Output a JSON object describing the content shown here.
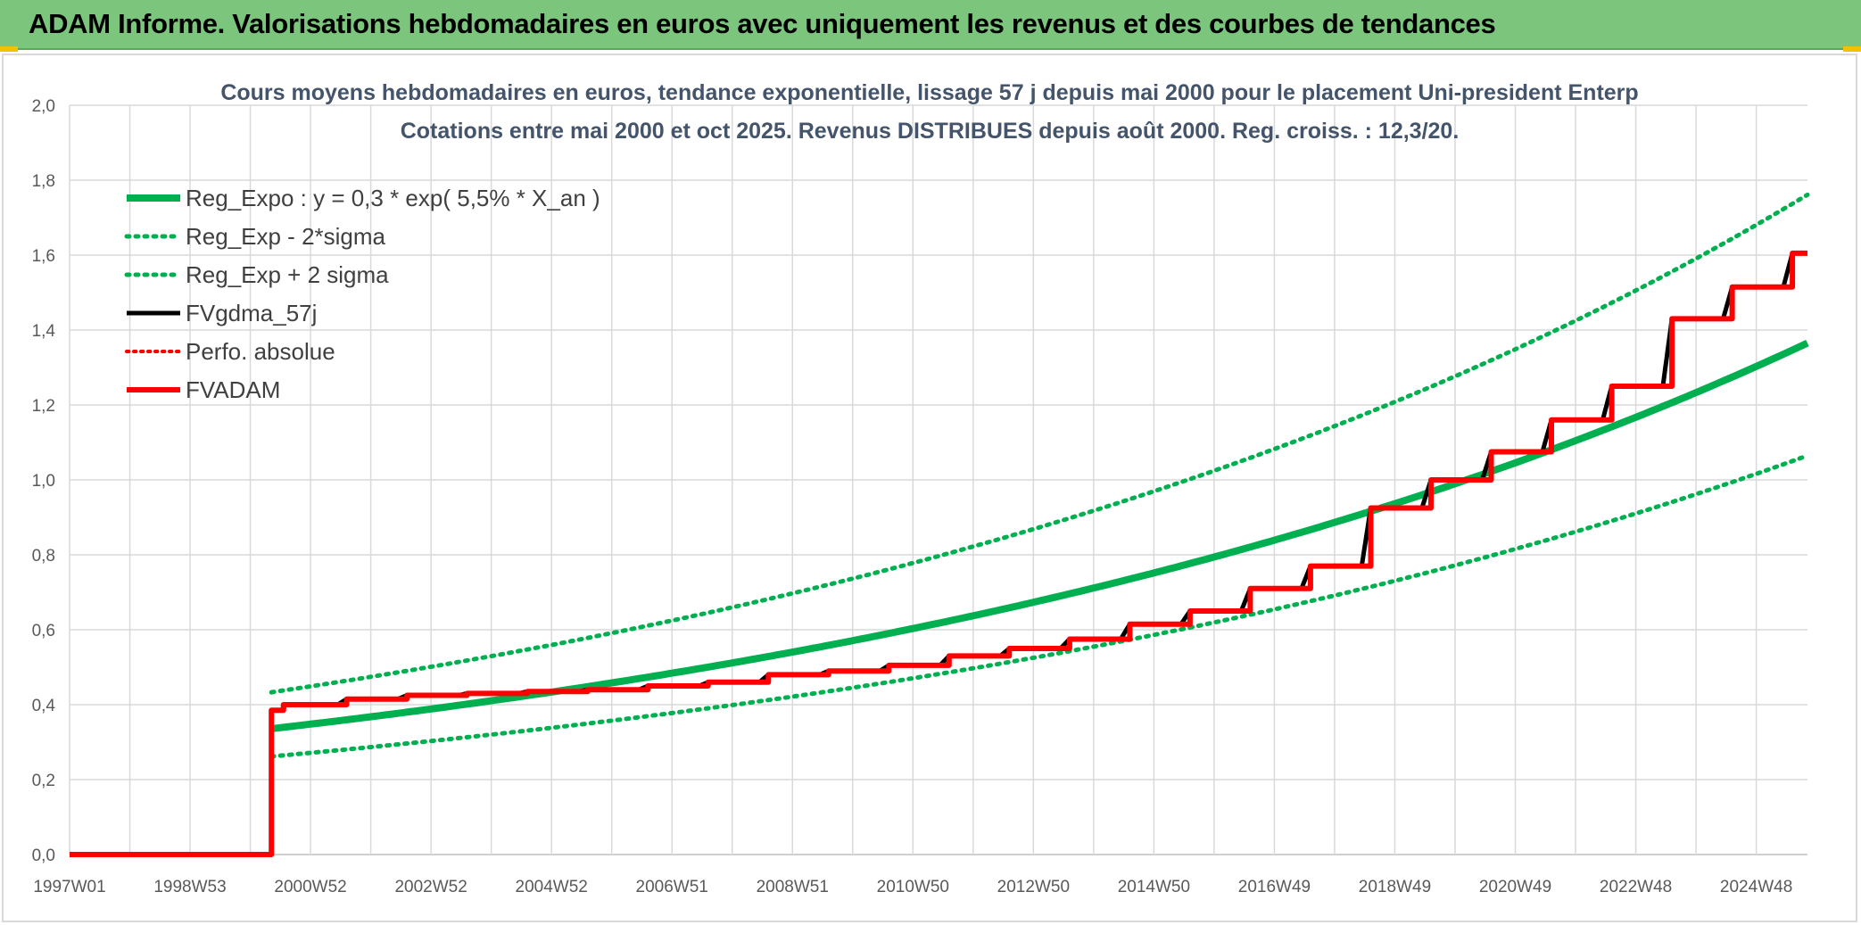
{
  "page": {
    "banner_title": "ADAM Informe. Valorisations hebdomadaires en euros avec uniquement les revenus et des courbes de tendances",
    "banner_color": "#7cc57c",
    "accent_color": "#f2c200"
  },
  "chart_data": {
    "type": "line",
    "title": "Cours moyens hebdomadaires en euros, tendance exponentielle, lissage 57 j depuis mai 2000 pour le placement Uni-president Enterp",
    "subtitle": "Cotations entre mai 2000 et oct 2025. Revenus DISTRIBUES depuis août 2000. Reg. croiss. : 12,3/20.",
    "xlabel": "",
    "ylabel": "",
    "x_range": [
      1997.0,
      2025.85
    ],
    "ylim": [
      0,
      2
    ],
    "y_ticks": [
      "0,0",
      "0,2",
      "0,4",
      "0,6",
      "0,8",
      "1,0",
      "1,2",
      "1,4",
      "1,6",
      "1,8",
      "2,0"
    ],
    "x_ticks": [
      {
        "label": "1997W01",
        "x": 1997.0
      },
      {
        "label": "1998W53",
        "x": 1999.0
      },
      {
        "label": "2000W52",
        "x": 2001.0
      },
      {
        "label": "2002W52",
        "x": 2003.0
      },
      {
        "label": "2004W52",
        "x": 2005.0
      },
      {
        "label": "2006W51",
        "x": 2007.0
      },
      {
        "label": "2008W51",
        "x": 2009.0
      },
      {
        "label": "2010W50",
        "x": 2011.0
      },
      {
        "label": "2012W50",
        "x": 2013.0
      },
      {
        "label": "2014W50",
        "x": 2015.0
      },
      {
        "label": "2016W49",
        "x": 2017.0
      },
      {
        "label": "2018W49",
        "x": 2019.0
      },
      {
        "label": "2020W49",
        "x": 2021.0
      },
      {
        "label": "2022W48",
        "x": 2023.0
      },
      {
        "label": "2024W48",
        "x": 2025.0
      }
    ],
    "grid": true,
    "legend_position": "top-left",
    "regression": {
      "a": 0.3,
      "rate": 0.055,
      "x_start": 2000.35,
      "x_end": 2025.85,
      "sigma_factor_high": 1.29,
      "sigma_factor_low": 0.78
    },
    "series": [
      {
        "name": "Reg_Expo : y = 0,3 * exp( 5,5% *  X_an )",
        "color": "#00b050",
        "style": "solid",
        "width": 8,
        "kind": "reg"
      },
      {
        "name": "Reg_Exp - 2*sigma",
        "color": "#00b050",
        "style": "dotted",
        "width": 5,
        "kind": "reg_low"
      },
      {
        "name": "Reg_Exp + 2 sigma",
        "color": "#00b050",
        "style": "dotted",
        "width": 5,
        "kind": "reg_high"
      },
      {
        "name": "FVgdma_57j",
        "color": "#000000",
        "style": "solid",
        "width": 5,
        "kind": "smooth"
      },
      {
        "name": "Perfo. absolue",
        "color": "#ff0000",
        "style": "dotted",
        "width": 4,
        "kind": "none"
      },
      {
        "name": "FVADAM",
        "color": "#ff0000",
        "style": "solid",
        "width": 6,
        "kind": "step",
        "x": [
          1997.0,
          2000.35,
          2000.35,
          2000.55,
          2001.6,
          2002.6,
          2003.6,
          2004.6,
          2005.6,
          2006.6,
          2007.6,
          2008.6,
          2009.6,
          2010.6,
          2011.6,
          2012.6,
          2013.6,
          2014.6,
          2015.6,
          2016.6,
          2017.6,
          2018.6,
          2019.6,
          2020.6,
          2021.6,
          2022.6,
          2023.6,
          2024.6,
          2025.6,
          2025.85
        ],
        "y": [
          0.0,
          0.0,
          0.385,
          0.4,
          0.415,
          0.425,
          0.43,
          0.435,
          0.44,
          0.45,
          0.46,
          0.48,
          0.49,
          0.505,
          0.53,
          0.55,
          0.575,
          0.615,
          0.65,
          0.71,
          0.77,
          0.925,
          1.0,
          1.075,
          1.16,
          1.25,
          1.43,
          1.515,
          1.605,
          1.605
        ]
      }
    ]
  }
}
